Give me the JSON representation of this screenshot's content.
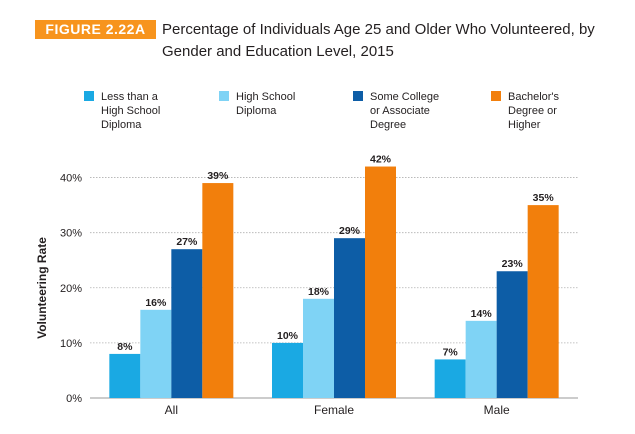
{
  "figure": {
    "badge": "FIGURE 2.22A",
    "title": "Percentage of Individuals Age 25 and Older Who Volunteered, by Gender and Education Level, 2015"
  },
  "colors": {
    "badge": "#f7941d",
    "series": [
      "#1aa9e3",
      "#7fd3f5",
      "#0d5da6",
      "#f27f0c"
    ],
    "grid": "#b0b0b0",
    "text": "#231f20"
  },
  "chart_data": {
    "type": "bar",
    "title": "Percentage of Individuals Age 25 and Older Who Volunteered, by Gender and Education Level, 2015",
    "xlabel": "",
    "ylabel": "Volunteering Rate",
    "categories": [
      "All",
      "Female",
      "Male"
    ],
    "series": [
      {
        "name": "Less than a High School Diploma",
        "legend_lines": [
          "Less than a",
          "High School",
          "Diploma"
        ],
        "values": [
          8,
          10,
          7
        ],
        "labels": [
          "8%",
          "10%",
          "7%"
        ]
      },
      {
        "name": "High School Diploma",
        "legend_lines": [
          "High School",
          "Diploma"
        ],
        "values": [
          16,
          18,
          14
        ],
        "labels": [
          "16%",
          "18%",
          "14%"
        ]
      },
      {
        "name": "Some College or Associate Degree",
        "legend_lines": [
          "Some College",
          "or Associate",
          "Degree"
        ],
        "values": [
          27,
          29,
          23
        ],
        "labels": [
          "27%",
          "29%",
          "23%"
        ]
      },
      {
        "name": "Bachelor's Degree or Higher",
        "legend_lines": [
          "Bachelor's",
          "Degree or",
          "Higher"
        ],
        "values": [
          39,
          42,
          35
        ],
        "labels": [
          "39%",
          "42%",
          "35%"
        ]
      }
    ],
    "ylim": [
      0,
      45
    ],
    "yticks": [
      0,
      10,
      20,
      30,
      40
    ],
    "ytick_labels": [
      "0%",
      "10%",
      "20%",
      "30%",
      "40%"
    ],
    "grid": true,
    "legend_position": "top"
  }
}
